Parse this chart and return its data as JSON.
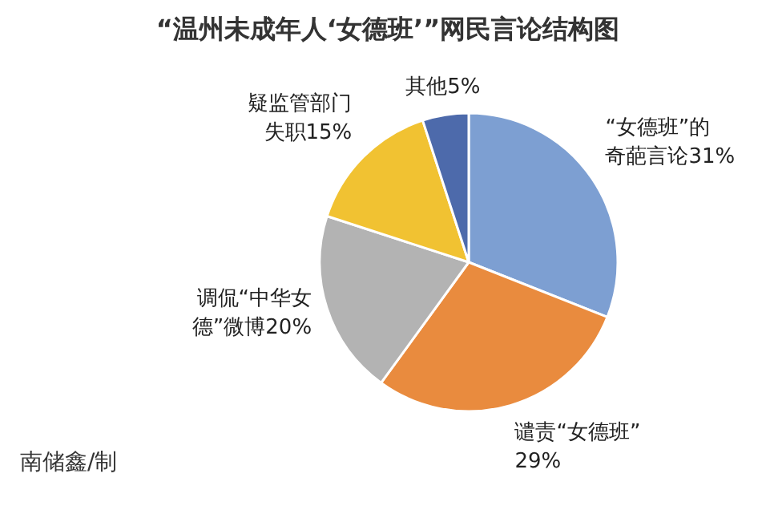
{
  "chart_data": {
    "type": "pie",
    "title": "“温州未成年人‘女德班’”网民言论结构图",
    "categories": [
      "“女德班”的奇葩言论",
      "谴责“女德班”",
      "调侃“中华女德”微博",
      "疑监管部门失职",
      "其他"
    ],
    "values": [
      31,
      29,
      20,
      15,
      5
    ],
    "colors": [
      "#7d9fd2",
      "#e98b3e",
      "#b3b3b3",
      "#f1c232",
      "#4d6aab"
    ],
    "value_labels": [
      "31%",
      "29%",
      "20%",
      "15%",
      "5%"
    ],
    "annotations": [
      "南储鑫/制"
    ]
  }
}
